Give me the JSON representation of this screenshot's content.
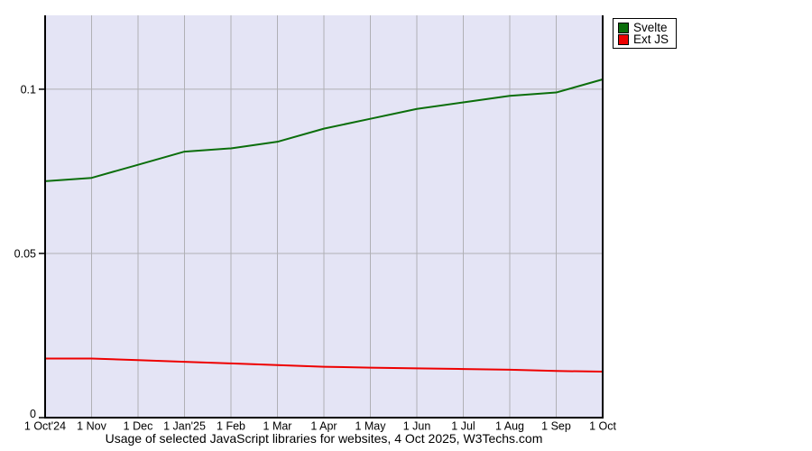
{
  "chart_data": {
    "type": "line",
    "caption": "Usage of selected JavaScript libraries for websites, 4 Oct 2025, W3Techs.com",
    "categories": [
      "1 Oct'24",
      "1 Nov",
      "1 Dec",
      "1 Jan'25",
      "1 Feb",
      "1 Mar",
      "1 Apr",
      "1 May",
      "1 Jun",
      "1 Jul",
      "1 Aug",
      "1 Sep",
      "1 Oct"
    ],
    "series": [
      {
        "name": "Svelte",
        "color": "#0b6e0b",
        "values": [
          0.072,
          0.073,
          0.077,
          0.081,
          0.082,
          0.084,
          0.088,
          0.091,
          0.094,
          0.096,
          0.098,
          0.099,
          0.103
        ]
      },
      {
        "name": "Ext JS",
        "color": "#ee0000",
        "values": [
          0.018,
          0.018,
          0.0175,
          0.017,
          0.0165,
          0.016,
          0.0155,
          0.0152,
          0.015,
          0.0148,
          0.0146,
          0.0142,
          0.014
        ]
      }
    ],
    "yticks": [
      {
        "value": 0,
        "label": "0"
      },
      {
        "value": 0.05,
        "label": "0.05"
      },
      {
        "value": 0.1,
        "label": "0.1"
      }
    ],
    "ylim": [
      0,
      0.1225
    ],
    "xlabel": "",
    "ylabel": "",
    "grid": true,
    "legend_position": "top-right",
    "colors": {
      "plot_bg": "#e4e4f5",
      "grid": "#b0b0b5",
      "axis": "#000000",
      "legend_bg": "#ffffff",
      "legend_border": "#000000",
      "text": "#000000"
    }
  }
}
